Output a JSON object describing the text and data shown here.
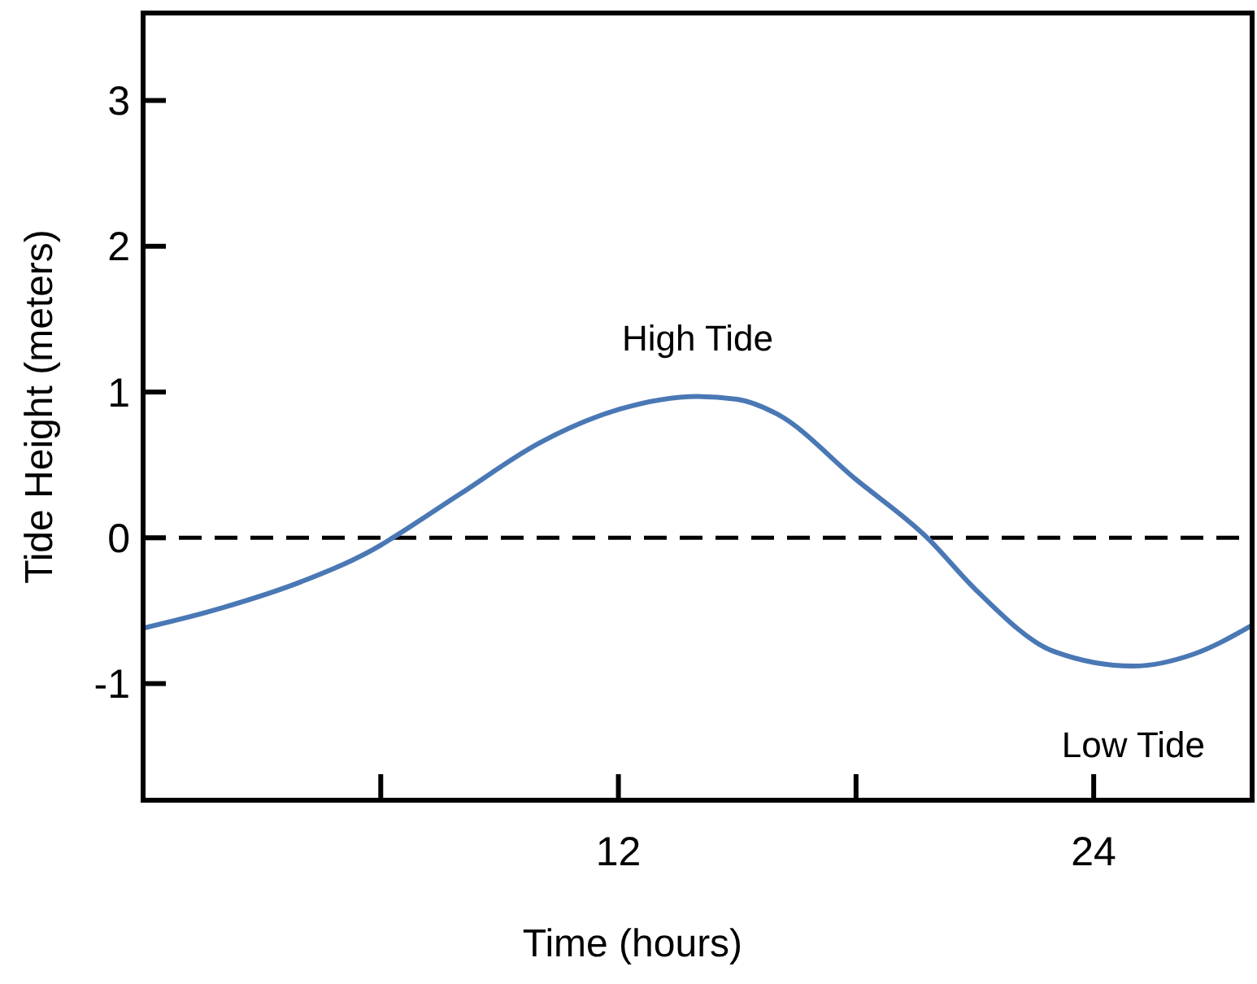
{
  "chart_data": {
    "type": "line",
    "xlabel": "Time (hours)",
    "ylabel": "Tide Height (meters)",
    "x": [
      0,
      2,
      4,
      6,
      6.3,
      8,
      10,
      12,
      14,
      15,
      16,
      18,
      19.8,
      21,
      23,
      25,
      26.5,
      28
    ],
    "series": [
      {
        "color": "#4a78b5",
        "values": [
          -0.62,
          -0.48,
          -0.3,
          -0.05,
          0,
          0.3,
          0.65,
          0.88,
          0.97,
          0.95,
          0.85,
          0.4,
          0,
          -0.35,
          -0.78,
          -0.88,
          -0.8,
          -0.6
        ]
      }
    ],
    "xlim": [
      0,
      28
    ],
    "xticks": [
      {
        "value": 6,
        "label": null
      },
      12,
      {
        "value": 18,
        "label": null
      },
      24
    ],
    "ylim": [
      -1.8,
      3.6
    ],
    "yticks": [
      -1,
      0,
      1,
      2,
      3
    ],
    "ref_lines": [
      {
        "axis": "y",
        "value": 0,
        "line_style": "dashed",
        "color": "#000000"
      }
    ],
    "annotations": [
      {
        "text": "High Tide",
        "x": 14,
        "y": 0.97
      },
      {
        "text": "Low Tide",
        "x": 25,
        "y": -0.88
      }
    ],
    "grid": false,
    "marker": "none",
    "line_style": "solid"
  }
}
